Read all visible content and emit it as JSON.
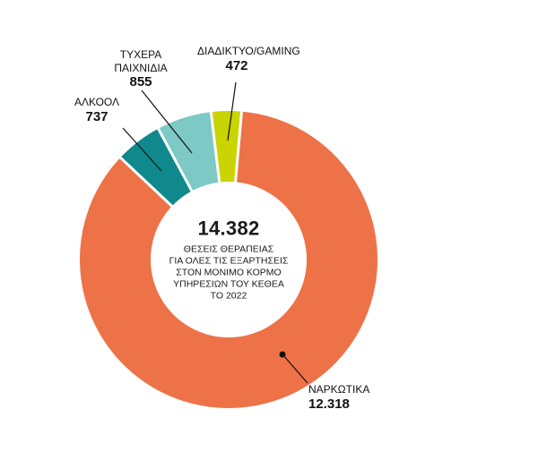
{
  "chart_data": {
    "type": "pie",
    "donut": true,
    "title": "",
    "total": 14382,
    "start_angle_deg": -85,
    "direction": "clockwise",
    "legend_position": "callouts",
    "background": "#FFFFFF",
    "center": {
      "value": "14.382",
      "lines": [
        "ΘΕΣΕΙΣ ΘΕΡΑΠΕΙΑΣ",
        "ΓΙΑ ΟΛΕΣ ΤΙΣ ΕΞΑΡΤΗΣΕΙΣ",
        "ΣΤΟΝ ΜΟΝΙΜΟ ΚΟΡΜΟ",
        "ΥΠΗΡΕΣΙΩΝ ΤΟΥ ΚΕΘΕΑ",
        "ΤΟ 2022"
      ]
    },
    "segments": [
      {
        "id": "narcotics",
        "label": "ΝΑΡΚΩΤΙΚΑ",
        "value": 12318,
        "display_value": "12.318",
        "color": "#EE7248"
      },
      {
        "id": "alcohol",
        "label": "ΑΛΚΟΟΛ",
        "value": 737,
        "display_value": "737",
        "color": "#0F898C"
      },
      {
        "id": "gambling",
        "label": "ΤΥΧΕΡΑ ΠΑΙΧΝΙΔΙΑ",
        "value": 855,
        "display_value": "855",
        "color": "#7CC9C6"
      },
      {
        "id": "internet-gaming",
        "label": "ΔΙΑΔΙΚΤΥΟ/GAMING",
        "value": 472,
        "display_value": "472",
        "color": "#C9D400"
      }
    ]
  }
}
